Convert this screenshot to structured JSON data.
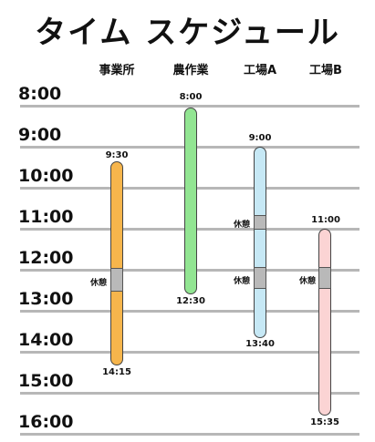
{
  "title": "タイム スケジュール",
  "hours": [
    "8:00",
    "9:00",
    "10:00",
    "11:00",
    "12:00",
    "13:00",
    "14:00",
    "15:00",
    "16:00"
  ],
  "break_label": "休憩",
  "colors": {
    "office": "#f6b54c",
    "farm": "#92e592",
    "factoryA": "#c6e8f5",
    "factoryB": "#fbd4d4",
    "break": "#b9b9b9",
    "gridline": "#b7b7b7"
  },
  "columns": [
    {
      "name": "事業所",
      "start": "9:30",
      "end": "14:15",
      "breaks": [
        1
      ]
    },
    {
      "name": "農作業",
      "start": "8:00",
      "end": "12:30",
      "breaks": []
    },
    {
      "name": "工場A",
      "start": "9:00",
      "end": "13:40",
      "breaks": [
        2,
        1
      ]
    },
    {
      "name": "工場B",
      "start": "11:00",
      "end": "15:35",
      "breaks": [
        1
      ]
    }
  ]
}
